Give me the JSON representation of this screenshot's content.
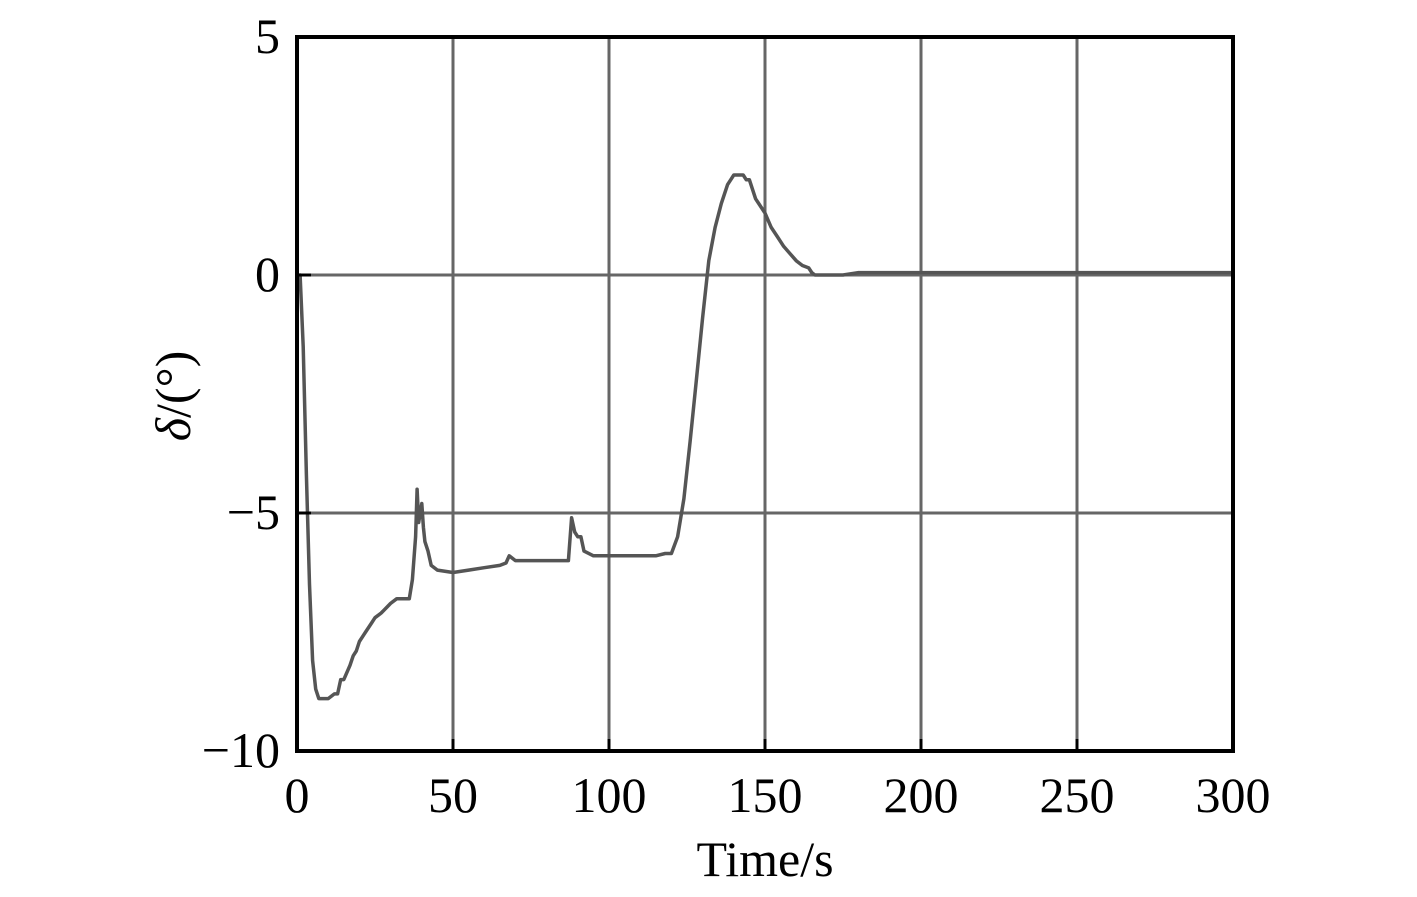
{
  "chart_data": {
    "type": "line",
    "xlabel": "Time/s",
    "ylabel_symbol": "δ",
    "ylabel_unit": "/(°)",
    "xlim": [
      0,
      300
    ],
    "ylim": [
      -10,
      5
    ],
    "xticks": [
      0,
      50,
      100,
      150,
      200,
      250,
      300
    ],
    "yticks": [
      5,
      0,
      -5,
      -10
    ],
    "xtick_labels": [
      "0",
      "50",
      "100",
      "150",
      "200",
      "250",
      "300"
    ],
    "ytick_labels": [
      "5",
      "0",
      "−5",
      "−10"
    ],
    "grid": true,
    "line_color": "#555555",
    "grid_color": "#666666",
    "series": [
      {
        "x": [
          1,
          2,
          3,
          4,
          5,
          6,
          7,
          8,
          10,
          12,
          13,
          14,
          15,
          17,
          18,
          19,
          20,
          22,
          24,
          25,
          27,
          30,
          32,
          35,
          36,
          37,
          38,
          38.5,
          39,
          39.5,
          40,
          40.5,
          41,
          42,
          43,
          45,
          50,
          55,
          60,
          65,
          67,
          68,
          70,
          75,
          80,
          85,
          87,
          88,
          89,
          90,
          91,
          92,
          95,
          100,
          105,
          110,
          115,
          118,
          120,
          122,
          124,
          126,
          128,
          130,
          132,
          134,
          136,
          138,
          139,
          140,
          141,
          142,
          143,
          144,
          145,
          146,
          147,
          148,
          150,
          152,
          154,
          156,
          158,
          160,
          162,
          164,
          165,
          166,
          168,
          170,
          175,
          180,
          190,
          200,
          220,
          250,
          280,
          300
        ],
        "y": [
          0.0,
          -1.5,
          -4.2,
          -6.5,
          -8.1,
          -8.7,
          -8.9,
          -8.9,
          -8.9,
          -8.8,
          -8.8,
          -8.5,
          -8.5,
          -8.2,
          -8.0,
          -7.9,
          -7.7,
          -7.5,
          -7.3,
          -7.2,
          -7.1,
          -6.9,
          -6.8,
          -6.8,
          -6.8,
          -6.4,
          -5.5,
          -4.5,
          -5.2,
          -5.0,
          -4.8,
          -5.3,
          -5.6,
          -5.8,
          -6.1,
          -6.2,
          -6.25,
          -6.2,
          -6.15,
          -6.1,
          -6.05,
          -5.9,
          -6.0,
          -6.0,
          -6.0,
          -6.0,
          -6.0,
          -5.1,
          -5.4,
          -5.5,
          -5.5,
          -5.8,
          -5.9,
          -5.9,
          -5.9,
          -5.9,
          -5.9,
          -5.85,
          -5.85,
          -5.5,
          -4.7,
          -3.5,
          -2.2,
          -0.9,
          0.3,
          1.0,
          1.5,
          1.9,
          2.0,
          2.1,
          2.1,
          2.1,
          2.1,
          2.0,
          2.0,
          1.8,
          1.6,
          1.5,
          1.3,
          1.0,
          0.8,
          0.6,
          0.45,
          0.3,
          0.2,
          0.15,
          0.05,
          0.0,
          0.0,
          0.0,
          0.0,
          0.05,
          0.05,
          0.05,
          0.05,
          0.05,
          0.05,
          0.05
        ]
      }
    ]
  }
}
